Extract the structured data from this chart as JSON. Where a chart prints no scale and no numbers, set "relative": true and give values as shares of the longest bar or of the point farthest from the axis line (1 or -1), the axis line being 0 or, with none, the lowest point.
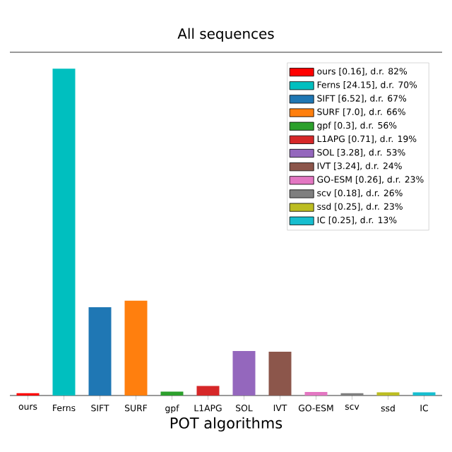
{
  "chart_data": {
    "type": "bar",
    "title": "All sequences",
    "xlabel": "POT algorithms",
    "categories": [
      "ours",
      "Ferns",
      "SIFT",
      "SURF",
      "gpf",
      "L1APG",
      "SOL",
      "IVT",
      "GO-ESM",
      "scv",
      "ssd",
      "IC"
    ],
    "series": [
      {
        "name": "ours [0.16], d.r. 82%",
        "color": "#ff0000",
        "values": [
          0.007,
          null,
          null,
          null,
          null,
          null,
          null,
          null,
          null,
          null,
          null,
          null
        ]
      },
      {
        "name": "Ferns [24.15], d.r. 70%",
        "color": "#00bfbf",
        "values": [
          null,
          1,
          null,
          null,
          null,
          null,
          null,
          null,
          null,
          null,
          null,
          null
        ]
      },
      {
        "name": "SIFT [6.52], d.r. 67%",
        "color": "#1f77b4",
        "values": [
          null,
          null,
          0.27,
          null,
          null,
          null,
          null,
          null,
          null,
          null,
          null,
          null
        ]
      },
      {
        "name": "SURF [7.0], d.r. 66%",
        "color": "#ff7f0e",
        "values": [
          null,
          null,
          null,
          0.29,
          null,
          null,
          null,
          null,
          null,
          null,
          null,
          null
        ]
      },
      {
        "name": "gpf [0.3], d.r. 56%",
        "color": "#2ca02c",
        "values": [
          null,
          null,
          null,
          null,
          0.012,
          null,
          null,
          null,
          null,
          null,
          null,
          null
        ]
      },
      {
        "name": "L1APG [0.71], d.r. 19%",
        "color": "#d62728",
        "values": [
          null,
          null,
          null,
          null,
          null,
          0.029,
          null,
          null,
          null,
          null,
          null,
          null
        ]
      },
      {
        "name": "SOL [3.28], d.r. 53%",
        "color": "#9467bd",
        "values": [
          null,
          null,
          null,
          null,
          null,
          null,
          0.136,
          null,
          null,
          null,
          null,
          null
        ]
      },
      {
        "name": "IVT [3.24], d.r. 24%",
        "color": "#8c564b",
        "values": [
          null,
          null,
          null,
          null,
          null,
          null,
          null,
          0.134,
          null,
          null,
          null,
          null
        ]
      },
      {
        "name": "GO-ESM [0.26], d.r. 23%",
        "color": "#e377c2",
        "values": [
          null,
          null,
          null,
          null,
          null,
          null,
          null,
          null,
          0.011,
          null,
          null,
          null
        ]
      },
      {
        "name": "scv [0.18], d.r. 26%",
        "color": "#7f7f7f",
        "values": [
          null,
          null,
          null,
          null,
          null,
          null,
          null,
          null,
          null,
          0.007,
          null,
          null
        ]
      },
      {
        "name": "ssd [0.25], d.r. 23%",
        "color": "#bcbd22",
        "values": [
          null,
          null,
          null,
          null,
          null,
          null,
          null,
          null,
          null,
          null,
          0.01,
          null
        ]
      },
      {
        "name": "IC [0.25], d.r. 13%",
        "color": "#17becf",
        "values": [
          null,
          null,
          null,
          null,
          null,
          null,
          null,
          null,
          null,
          null,
          null,
          0.01
        ]
      }
    ],
    "legend": "top right",
    "tick_labels": "x",
    "relative": true
  }
}
